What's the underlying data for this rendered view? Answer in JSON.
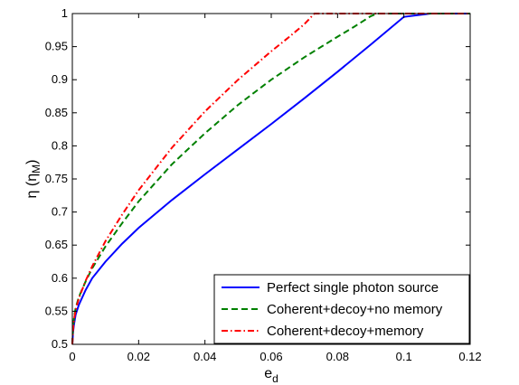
{
  "chart_data": {
    "type": "line",
    "xlabel": "e",
    "xlabel_sub": "d",
    "ylabel": "η (η",
    "ylabel_sub": "M",
    "ylabel_close": ")",
    "xlim": [
      0,
      0.12
    ],
    "ylim": [
      0.5,
      1
    ],
    "xticks": [
      0,
      0.02,
      0.04,
      0.06,
      0.08,
      0.1,
      0.12
    ],
    "xtick_labels": [
      "0",
      "0.02",
      "0.04",
      "0.06",
      "0.08",
      "0.1",
      "0.12"
    ],
    "yticks": [
      0.5,
      0.55,
      0.6,
      0.65,
      0.7,
      0.75,
      0.8,
      0.85,
      0.9,
      0.95,
      1
    ],
    "ytick_labels": [
      "0.5",
      "0.55",
      "0.6",
      "0.65",
      "0.7",
      "0.75",
      "0.8",
      "0.85",
      "0.9",
      "0.95",
      "1"
    ],
    "grid": false,
    "legend_position": "bottom-right",
    "series": [
      {
        "name": "Perfect single photon source",
        "color": "#0000ff",
        "style": "solid",
        "x": [
          0,
          0.0002,
          0.0005,
          0.001,
          0.002,
          0.004,
          0.006,
          0.01,
          0.015,
          0.02,
          0.03,
          0.04,
          0.05,
          0.06,
          0.07,
          0.08,
          0.09,
          0.1,
          0.108,
          0.11,
          0.12
        ],
        "y": [
          0.5,
          0.518,
          0.53,
          0.545,
          0.56,
          0.582,
          0.6,
          0.625,
          0.652,
          0.676,
          0.718,
          0.757,
          0.795,
          0.833,
          0.872,
          0.912,
          0.953,
          0.995,
          1.0,
          1.0,
          1.0
        ]
      },
      {
        "name": "Coherent+decoy+no memory",
        "color": "#008000",
        "style": "dashed",
        "x": [
          0,
          0.0002,
          0.0005,
          0.001,
          0.002,
          0.004,
          0.006,
          0.01,
          0.015,
          0.02,
          0.03,
          0.04,
          0.05,
          0.06,
          0.07,
          0.08,
          0.085,
          0.09,
          0.092,
          0.1,
          0.12
        ],
        "y": [
          0.5,
          0.525,
          0.54,
          0.555,
          0.572,
          0.595,
          0.615,
          0.648,
          0.683,
          0.716,
          0.772,
          0.819,
          0.862,
          0.9,
          0.934,
          0.965,
          0.98,
          0.996,
          1.0,
          1.0,
          1.0
        ]
      },
      {
        "name": "Coherent+decoy+memory",
        "color": "#ff0000",
        "style": "dashdot",
        "x": [
          0,
          0.0002,
          0.0005,
          0.001,
          0.002,
          0.004,
          0.006,
          0.01,
          0.015,
          0.02,
          0.03,
          0.04,
          0.05,
          0.06,
          0.065,
          0.07,
          0.073,
          0.08,
          0.1,
          0.12
        ],
        "y": [
          0.5,
          0.522,
          0.537,
          0.552,
          0.57,
          0.596,
          0.618,
          0.656,
          0.696,
          0.733,
          0.797,
          0.852,
          0.9,
          0.943,
          0.963,
          0.984,
          1.0,
          1.0,
          1.0,
          1.0
        ]
      }
    ]
  }
}
